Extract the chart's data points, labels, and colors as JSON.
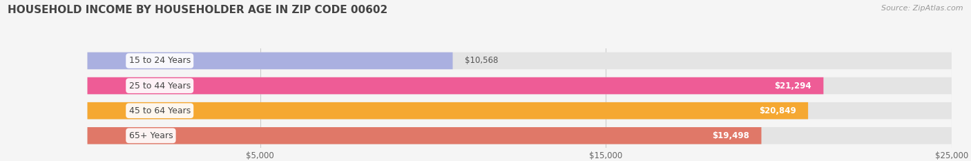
{
  "title": "HOUSEHOLD INCOME BY HOUSEHOLDER AGE IN ZIP CODE 00602",
  "source": "Source: ZipAtlas.com",
  "categories": [
    "15 to 24 Years",
    "25 to 44 Years",
    "45 to 64 Years",
    "65+ Years"
  ],
  "values": [
    10568,
    21294,
    20849,
    19498
  ],
  "bar_colors": [
    "#aab0e0",
    "#ee5c96",
    "#f5a832",
    "#e07868"
  ],
  "bar_labels": [
    "$10,568",
    "$21,294",
    "$20,849",
    "$19,498"
  ],
  "x_max": 25000,
  "x_ticks": [
    5000,
    15000,
    25000
  ],
  "x_tick_labels": [
    "$5,000",
    "$15,000",
    "$25,000"
  ],
  "bg_color": "#f5f5f5",
  "bar_bg_color": "#e4e4e4",
  "title_fontsize": 11,
  "source_fontsize": 8,
  "label_fontsize": 8.5,
  "category_fontsize": 9,
  "bar_height": 0.68,
  "bar_gap": 0.32
}
